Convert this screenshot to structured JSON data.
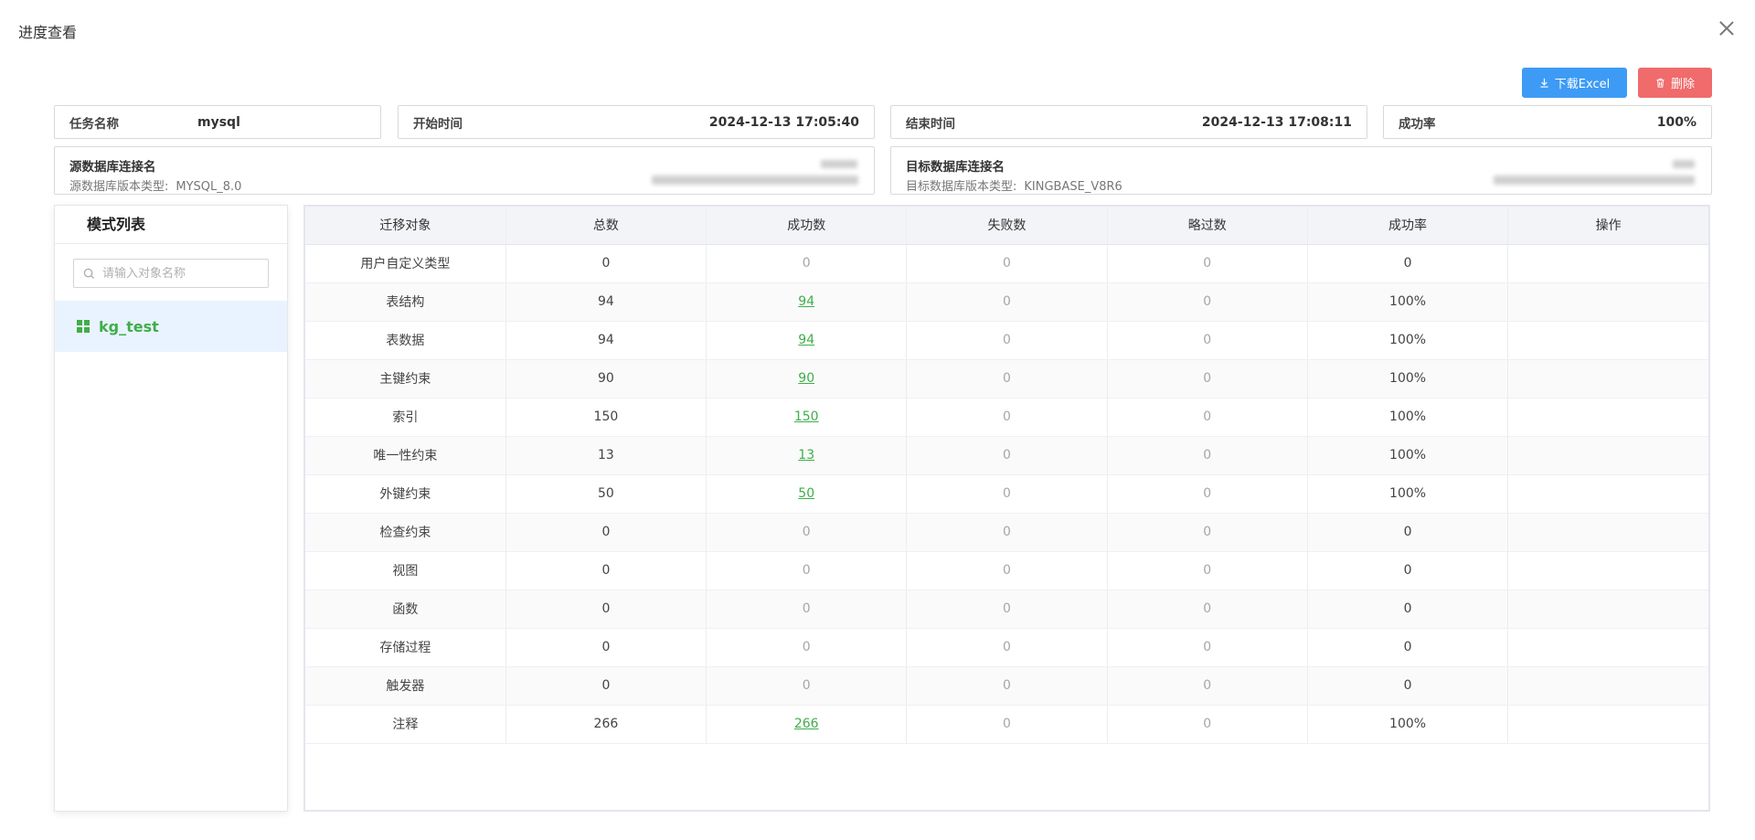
{
  "dialog": {
    "title": "进度查看"
  },
  "toolbar": {
    "excel_label": "下载Excel",
    "delete_label": "删除"
  },
  "task": {
    "name_label": "任务名称",
    "name_value": "mysql",
    "start_label": "开始时间",
    "start_value": "2024-12-13 17:05:40",
    "end_label": "结束时间",
    "end_value": "2024-12-13 17:08:11",
    "rate_label": "成功率",
    "rate_value": "100%"
  },
  "source": {
    "title": "源数据库连接名",
    "version_label": "源数据库版本类型:",
    "version_value": "MYSQL_8.0"
  },
  "target": {
    "title": "目标数据库连接名",
    "version_label": "目标数据库版本类型:",
    "version_value": "KINGBASE_V8R6"
  },
  "schema_panel": {
    "title": "模式列表",
    "search_placeholder": "请输入对象名称",
    "items": [
      {
        "label": "kg_test",
        "selected": true
      }
    ]
  },
  "table": {
    "headers": [
      "迁移对象",
      "总数",
      "成功数",
      "失败数",
      "略过数",
      "成功率",
      "操作"
    ],
    "rows": [
      [
        "用户自定义类型",
        "0",
        "0",
        "0",
        "0",
        "0",
        ""
      ],
      [
        "表结构",
        "94",
        "94",
        "0",
        "0",
        "100%",
        ""
      ],
      [
        "表数据",
        "94",
        "94",
        "0",
        "0",
        "100%",
        ""
      ],
      [
        "主键约束",
        "90",
        "90",
        "0",
        "0",
        "100%",
        ""
      ],
      [
        "索引",
        "150",
        "150",
        "0",
        "0",
        "100%",
        ""
      ],
      [
        "唯一性约束",
        "13",
        "13",
        "0",
        "0",
        "100%",
        ""
      ],
      [
        "外键约束",
        "50",
        "50",
        "0",
        "0",
        "100%",
        ""
      ],
      [
        "检查约束",
        "0",
        "0",
        "0",
        "0",
        "0",
        ""
      ],
      [
        "视图",
        "0",
        "0",
        "0",
        "0",
        "0",
        ""
      ],
      [
        "函数",
        "0",
        "0",
        "0",
        "0",
        "0",
        ""
      ],
      [
        "存储过程",
        "0",
        "0",
        "0",
        "0",
        "0",
        ""
      ],
      [
        "触发器",
        "0",
        "0",
        "0",
        "0",
        "0",
        ""
      ],
      [
        "注释",
        "266",
        "266",
        "0",
        "0",
        "100%",
        ""
      ]
    ]
  },
  "colors": {
    "primary": "#3d9bf5",
    "danger": "#f06b6b",
    "success": "#3fae49",
    "selected_bg": "#e9f3ff"
  },
  "icons": {
    "close": "close-icon",
    "download": "download-icon",
    "delete": "trash-icon",
    "search": "search-icon",
    "schema": "grid-icon"
  }
}
